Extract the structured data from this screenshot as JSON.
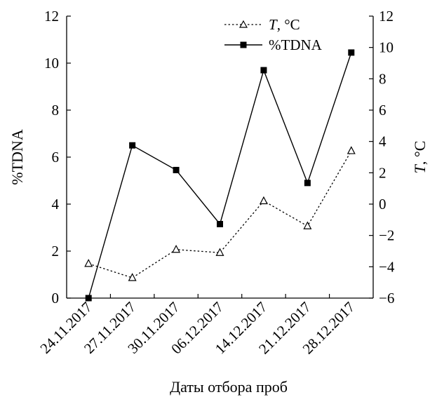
{
  "chart_data": {
    "type": "line",
    "categories": [
      "24.11.2017",
      "27.11.2017",
      "30.11.2017",
      "06.12.2017",
      "14.12.2017",
      "21.12.2017",
      "28.12.2017"
    ],
    "xlabel": "Даты отбора проб",
    "y_left": {
      "label": "%TDNA",
      "range": [
        0,
        12
      ],
      "ticks": [
        "0",
        "2",
        "4",
        "6",
        "8",
        "10",
        "12"
      ]
    },
    "y_right": {
      "label_italic": "T",
      "label_rest": ", °C",
      "range": [
        -6,
        12
      ],
      "ticks": [
        "−6",
        "−4",
        "−2",
        "0",
        "2",
        "4",
        "6",
        "8",
        "10",
        "12"
      ]
    },
    "series": [
      {
        "name_italic": "T",
        "name_rest": ", °C",
        "axis": "right",
        "style": "dotted",
        "marker": "open-triangle",
        "values": [
          -3.8,
          -4.7,
          -2.9,
          -3.1,
          0.2,
          -1.4,
          3.4
        ]
      },
      {
        "name": "%TDNA",
        "axis": "left",
        "style": "solid",
        "marker": "filled-square",
        "values": [
          0.0,
          6.5,
          5.45,
          3.15,
          9.7,
          4.9,
          10.45
        ]
      }
    ],
    "legend_position": "top-right",
    "grid": false
  }
}
